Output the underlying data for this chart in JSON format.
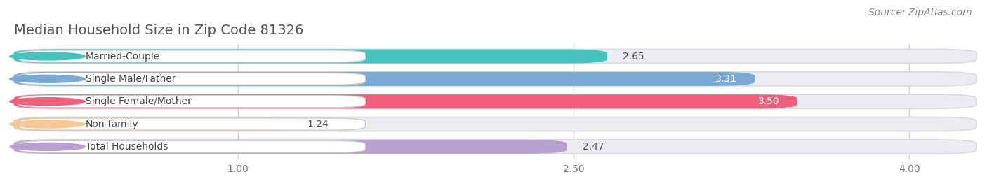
{
  "title": "Median Household Size in Zip Code 81326",
  "source": "Source: ZipAtlas.com",
  "categories": [
    "Married-Couple",
    "Single Male/Father",
    "Single Female/Mother",
    "Non-family",
    "Total Households"
  ],
  "values": [
    2.65,
    3.31,
    3.5,
    1.24,
    2.47
  ],
  "bar_colors": [
    "#45C4BE",
    "#7AAAD4",
    "#F0607A",
    "#F5C896",
    "#B8A0D0"
  ],
  "label_dot_colors": [
    "#45C4BE",
    "#7AAAD4",
    "#F0607A",
    "#F5C896",
    "#B8A0D0"
  ],
  "xlim_min": 0.0,
  "xlim_max": 4.3,
  "xticks": [
    1.0,
    2.5,
    4.0
  ],
  "xtick_labels": [
    "1.00",
    "2.50",
    "4.00"
  ],
  "background_color": "#ffffff",
  "bar_bg_color": "#ebebf0",
  "bar_height": 0.62,
  "title_fontsize": 14,
  "label_fontsize": 10,
  "value_fontsize": 10,
  "source_fontsize": 10,
  "value_inside_threshold": 3.0,
  "title_color": "#555555",
  "source_color": "#888888",
  "label_text_color": "#444444",
  "value_dark_color": "#555555",
  "value_light_color": "#ffffff"
}
